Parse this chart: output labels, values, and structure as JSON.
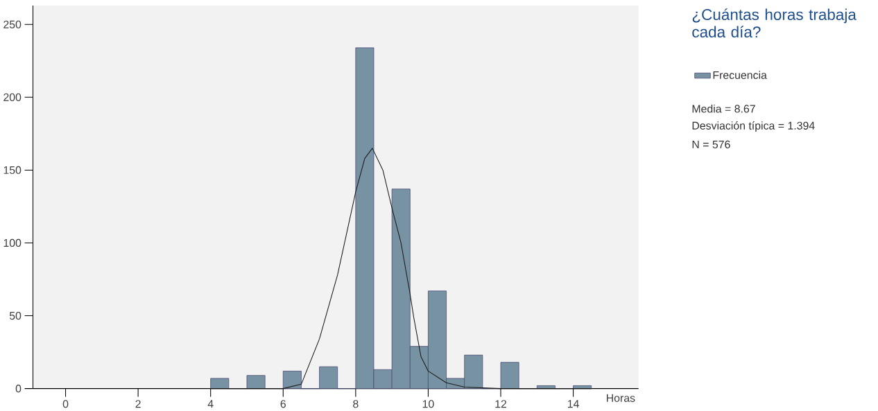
{
  "chart_data": {
    "type": "histogram",
    "title": "¿Cuántas horas trabaja cada día?",
    "xlabel": "Horas",
    "bins": [
      4,
      4.5,
      5,
      5.5,
      6,
      6.5,
      7,
      7.5,
      8,
      8.5,
      9,
      9.5,
      10,
      10.5,
      11,
      11.5,
      12,
      12.5,
      13,
      13.5,
      14,
      14.5
    ],
    "series": [
      {
        "name": "Frecuencia",
        "color": "#7793a3",
        "values": [
          7,
          0,
          9,
          0,
          12,
          0,
          15,
          0,
          234,
          13,
          137,
          29,
          67,
          7,
          23,
          0,
          18,
          0,
          2,
          0,
          2
        ]
      },
      {
        "type": "line",
        "color": "#1a1a1a",
        "x": [
          4,
          5,
          6,
          6.5,
          7,
          7.5,
          8,
          8.25,
          8.46,
          8.75,
          9,
          9.25,
          9.5,
          9.6,
          9.8,
          10,
          10.5,
          11,
          12,
          14.5
        ],
        "values": [
          0,
          0,
          0,
          3,
          34,
          78,
          135,
          158,
          165,
          150,
          124,
          100,
          65,
          49,
          22,
          12,
          4,
          1,
          0,
          0
        ]
      }
    ],
    "xlim": [
      -0.9,
      15.8
    ],
    "ylim": [
      0,
      263
    ],
    "xticks": [
      0,
      2,
      4,
      6,
      8,
      10,
      12,
      14
    ],
    "yticks": [
      0,
      50,
      100,
      150,
      200,
      250
    ],
    "grid": false,
    "legend": "top right",
    "marker": "none",
    "annotations": [
      "Media = 8.67",
      "Desviación típica = 1.394",
      "N = 576"
    ]
  }
}
